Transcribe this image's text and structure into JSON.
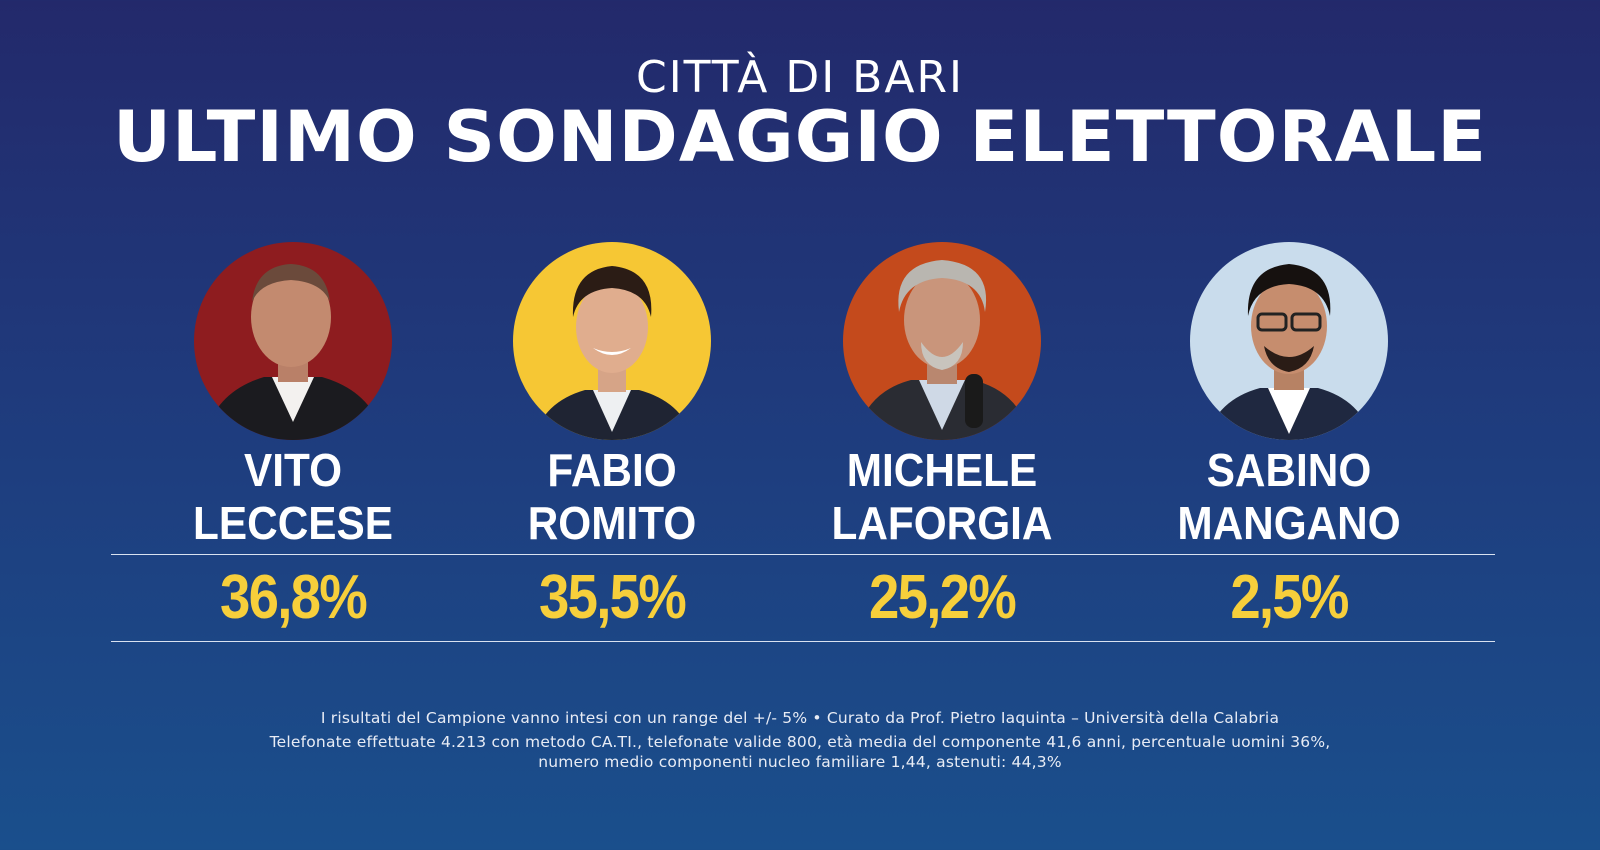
{
  "header": {
    "subtitle": "CITTÀ DI BARI",
    "title": "ULTIMO SONDAGGIO ELETTORALE"
  },
  "candidates": [
    {
      "first": "VITO",
      "last": "LECCESE",
      "percent": "36,8%",
      "bg_color": "#8e1c1f"
    },
    {
      "first": "FABIO",
      "last": "ROMITO",
      "percent": "35,5%",
      "bg_color": "#f6c734"
    },
    {
      "first": "MICHELE",
      "last": "LAFORGIA",
      "percent": "25,2%",
      "bg_color": "#c44a1c"
    },
    {
      "first": "SABINO",
      "last": "MANGANO",
      "percent": "2,5%",
      "bg_color": "#c9dcec"
    }
  ],
  "footer": {
    "line1": "I risultati del Campione vanno intesi con un range del +/- 5% • Curato da Prof. Pietro Iaquinta – Università della Calabria",
    "line2": "Telefonate effettuate 4.213 con metodo CA.TI., telefonate valide 800, età media del componente 41,6 anni, percentuale uomini 36%,",
    "line3": "numero medio componenti nucleo familiare 1,44, astenuti: 44,3%"
  },
  "colors": {
    "accent": "#f7cf3b",
    "background_top": "#23296b",
    "background_bottom": "#1a4f8c"
  }
}
